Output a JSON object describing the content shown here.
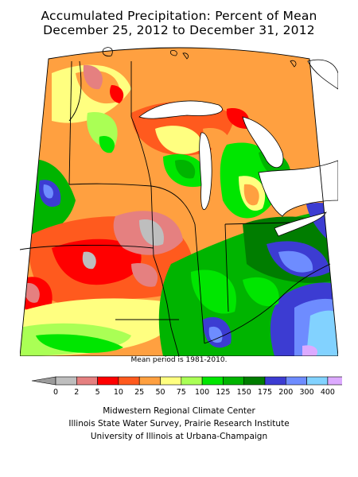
{
  "title": {
    "line1": "Accumulated Precipitation: Percent of Mean",
    "line2": "December 25, 2012 to December 31, 2012"
  },
  "mean_period_note": "Mean period is 1981-2010.",
  "legend": {
    "bins": [
      {
        "label": "0",
        "color": "#bebebe"
      },
      {
        "label": "2",
        "color": "#e58080"
      },
      {
        "label": "5",
        "color": "#ff0000"
      },
      {
        "label": "10",
        "color": "#ff5a1e"
      },
      {
        "label": "25",
        "color": "#ffa040"
      },
      {
        "label": "50",
        "color": "#ffff80"
      },
      {
        "label": "75",
        "color": "#aaff55"
      },
      {
        "label": "100",
        "color": "#00e600"
      },
      {
        "label": "125",
        "color": "#00b400"
      },
      {
        "label": "150",
        "color": "#007d00"
      },
      {
        "label": "175",
        "color": "#3c3cd2"
      },
      {
        "label": "200",
        "color": "#6e8cff"
      },
      {
        "label": "300",
        "color": "#82d2ff"
      },
      {
        "label": "400",
        "color": "#dcaaff"
      }
    ],
    "underflow_color": "#9b9b9b"
  },
  "credits": {
    "line1": "Midwestern Regional Climate Center",
    "line2": "Illinois State Water Survey, Prairie Research Institute",
    "line3": "University of Illinois at Urbana-Champaign"
  },
  "map": {
    "region": "Midwest United States",
    "states": [
      "MN",
      "WI",
      "MI",
      "IA",
      "IL",
      "IN",
      "OH",
      "MO",
      "KY"
    ],
    "lake_color": "#ffffff",
    "outline_color": "#000000"
  }
}
